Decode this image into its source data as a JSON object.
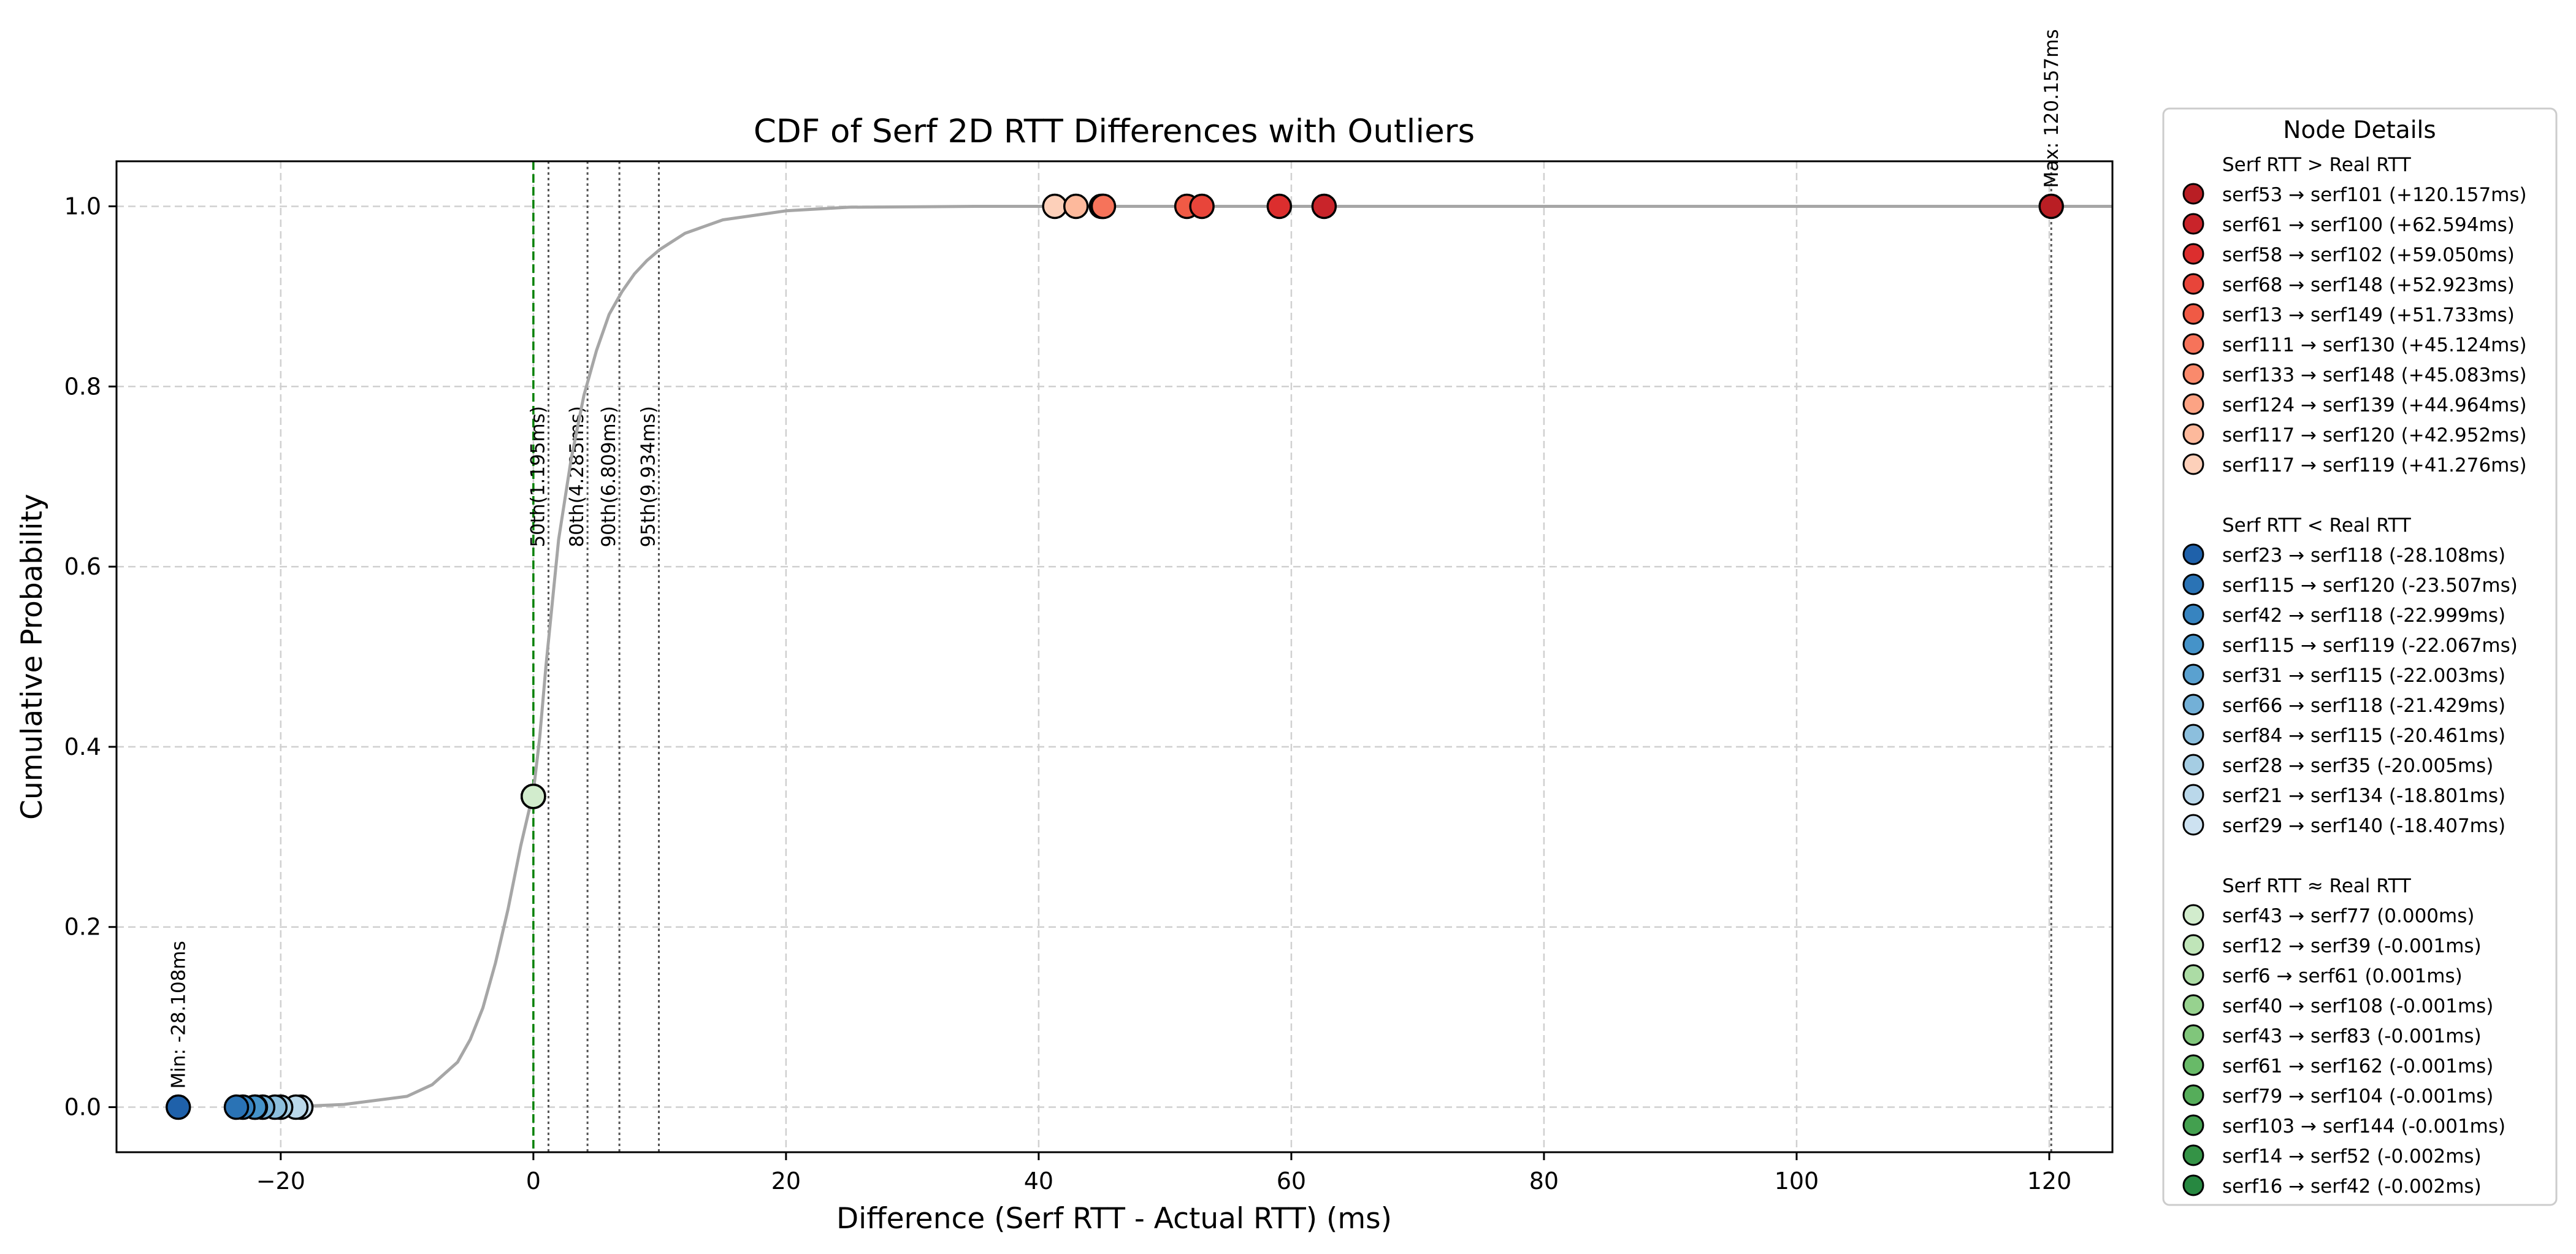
{
  "chart_data": {
    "type": "scatter",
    "title": "CDF of Serf 2D RTT Differences with Outliers",
    "xlabel": "Difference (Serf RTT - Actual RTT) (ms)",
    "ylabel": "Cumulative Probability",
    "xlim": [
      -33,
      125
    ],
    "ylim": [
      -0.05,
      1.05
    ],
    "x_ticks": [
      -20,
      0,
      20,
      40,
      60,
      80,
      100,
      120
    ],
    "x_tick_labels": [
      "−20",
      "0",
      "20",
      "40",
      "60",
      "80",
      "100",
      "120"
    ],
    "y_ticks": [
      0.0,
      0.2,
      0.4,
      0.6,
      0.8,
      1.0
    ],
    "y_tick_labels": [
      "0.0",
      "0.2",
      "0.4",
      "0.6",
      "0.8",
      "1.0"
    ],
    "grid": true,
    "legend_position": "outside-right",
    "cdf_line": {
      "color": "#a6a6a6",
      "points": [
        [
          -20,
          0.0
        ],
        [
          -15,
          0.003
        ],
        [
          -10,
          0.012
        ],
        [
          -8,
          0.025
        ],
        [
          -6,
          0.05
        ],
        [
          -5,
          0.075
        ],
        [
          -4,
          0.11
        ],
        [
          -3,
          0.16
        ],
        [
          -2,
          0.22
        ],
        [
          -1,
          0.29
        ],
        [
          0,
          0.35
        ],
        [
          0.5,
          0.41
        ],
        [
          1,
          0.49
        ],
        [
          1.5,
          0.56
        ],
        [
          2,
          0.63
        ],
        [
          3,
          0.72
        ],
        [
          4,
          0.79
        ],
        [
          5,
          0.84
        ],
        [
          6,
          0.88
        ],
        [
          7,
          0.905
        ],
        [
          8,
          0.925
        ],
        [
          9,
          0.94
        ],
        [
          10,
          0.952
        ],
        [
          12,
          0.97
        ],
        [
          15,
          0.985
        ],
        [
          20,
          0.995
        ],
        [
          25,
          0.999
        ],
        [
          35,
          1.0
        ],
        [
          125,
          1.0
        ]
      ]
    },
    "reference_lines": [
      {
        "x": 0,
        "label": "",
        "color": "#008000",
        "style": "dashed"
      },
      {
        "x": 1.195,
        "label": "50th(1.195ms)",
        "color": "#555555",
        "style": "dotted"
      },
      {
        "x": 4.285,
        "label": "80th(4.285ms)",
        "color": "#555555",
        "style": "dotted"
      },
      {
        "x": 6.809,
        "label": "90th(6.809ms)",
        "color": "#555555",
        "style": "dotted"
      },
      {
        "x": 9.934,
        "label": "95th(9.934ms)",
        "color": "#555555",
        "style": "dotted"
      },
      {
        "x": 120.157,
        "label": "",
        "color": "#555555",
        "style": "dotted"
      }
    ],
    "annotations": [
      {
        "x": -28.108,
        "y": 0.0,
        "text": "Min: -28.108ms"
      },
      {
        "x": 120.157,
        "y": 1.0,
        "text": "Max: 120.157ms"
      }
    ],
    "legend_title": "Node Details",
    "groups": [
      {
        "name": "Serf RTT > Real RTT",
        "points": [
          {
            "label": "serf53 → serf101 (+120.157ms)",
            "x": 120.157,
            "y": 1.0,
            "color": "#b91e24"
          },
          {
            "label": "serf61 → serf100 (+62.594ms)",
            "x": 62.594,
            "y": 1.0,
            "color": "#c9242a"
          },
          {
            "label": "serf58 → serf102 (+59.050ms)",
            "x": 59.05,
            "y": 1.0,
            "color": "#dc2e2e"
          },
          {
            "label": "serf68 → serf148 (+52.923ms)",
            "x": 52.923,
            "y": 1.0,
            "color": "#e8453a"
          },
          {
            "label": "serf13 → serf149 (+51.733ms)",
            "x": 51.733,
            "y": 1.0,
            "color": "#f05a45"
          },
          {
            "label": "serf111 → serf130 (+45.124ms)",
            "x": 45.124,
            "y": 1.0,
            "color": "#f6735a"
          },
          {
            "label": "serf133 → serf148 (+45.083ms)",
            "x": 45.083,
            "y": 1.0,
            "color": "#fa8a6c"
          },
          {
            "label": "serf124 → serf139 (+44.964ms)",
            "x": 44.964,
            "y": 1.0,
            "color": "#fca384"
          },
          {
            "label": "serf117 → serf120 (+42.952ms)",
            "x": 42.952,
            "y": 1.0,
            "color": "#fdb99c"
          },
          {
            "label": "serf117 → serf119 (+41.276ms)",
            "x": 41.276,
            "y": 1.0,
            "color": "#fdd0ba"
          }
        ]
      },
      {
        "name": "Serf RTT < Real RTT",
        "points": [
          {
            "label": "serf23 → serf118 (-28.108ms)",
            "x": -28.108,
            "y": 0.0,
            "color": "#1f61aa"
          },
          {
            "label": "serf115 → serf120 (-23.507ms)",
            "x": -23.507,
            "y": 0.0,
            "color": "#2a73b5"
          },
          {
            "label": "serf42 → serf118 (-22.999ms)",
            "x": -22.999,
            "y": 0.0,
            "color": "#3784c0"
          },
          {
            "label": "serf115 → serf119 (-22.067ms)",
            "x": -22.067,
            "y": 0.0,
            "color": "#4593c9"
          },
          {
            "label": "serf31 → serf115 (-22.003ms)",
            "x": -22.003,
            "y": 0.0,
            "color": "#5aa1d0"
          },
          {
            "label": "serf66 → serf118 (-21.429ms)",
            "x": -21.429,
            "y": 0.0,
            "color": "#73b0d7"
          },
          {
            "label": "serf84 → serf115 (-20.461ms)",
            "x": -20.461,
            "y": 0.0,
            "color": "#8cbfdd"
          },
          {
            "label": "serf28 → serf35 (-20.005ms)",
            "x": -20.005,
            "y": 0.0,
            "color": "#a5cde3"
          },
          {
            "label": "serf21 → serf134 (-18.801ms)",
            "x": -18.801,
            "y": 0.0,
            "color": "#bad8ea"
          },
          {
            "label": "serf29 → serf140 (-18.407ms)",
            "x": -18.407,
            "y": 0.0,
            "color": "#cde2f1"
          }
        ]
      },
      {
        "name": "Serf RTT ≈ Real RTT",
        "points": [
          {
            "label": "serf43 → serf77 (0.000ms)",
            "x": 0.0,
            "y": 0.345,
            "color": "#d2eccd"
          },
          {
            "label": "serf12 → serf39 (-0.001ms)",
            "x": -0.001,
            "y": 0.345,
            "color": "#c0e5b9"
          },
          {
            "label": "serf6 → serf61 (0.001ms)",
            "x": 0.001,
            "y": 0.345,
            "color": "#acdca5"
          },
          {
            "label": "serf40 → serf108 (-0.001ms)",
            "x": -0.001,
            "y": 0.345,
            "color": "#97d28f"
          },
          {
            "label": "serf43 → serf83 (-0.001ms)",
            "x": -0.001,
            "y": 0.345,
            "color": "#80c67b"
          },
          {
            "label": "serf61 → serf162 (-0.001ms)",
            "x": -0.001,
            "y": 0.345,
            "color": "#68ba68"
          },
          {
            "label": "serf79 → serf104 (-0.001ms)",
            "x": -0.001,
            "y": 0.345,
            "color": "#55ad5a"
          },
          {
            "label": "serf103 → serf144 (-0.001ms)",
            "x": -0.001,
            "y": 0.345,
            "color": "#43a04f"
          },
          {
            "label": "serf14 → serf52 (-0.002ms)",
            "x": -0.002,
            "y": 0.345,
            "color": "#349346"
          },
          {
            "label": "serf16 → serf42 (-0.002ms)",
            "x": -0.002,
            "y": 0.345,
            "color": "#278841"
          }
        ]
      }
    ]
  }
}
